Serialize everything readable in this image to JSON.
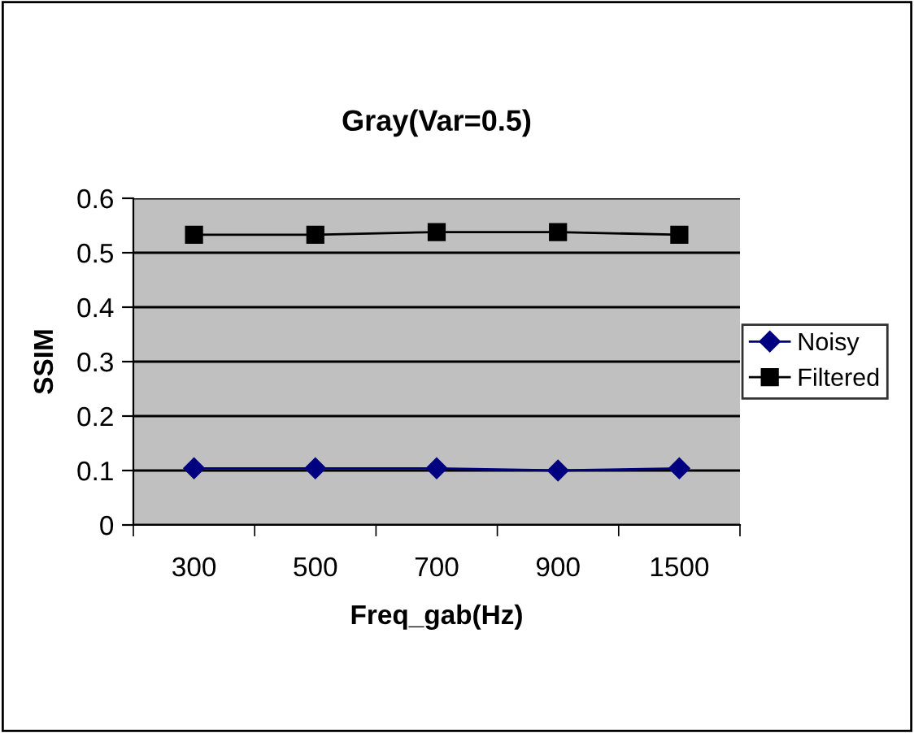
{
  "chart_data": {
    "type": "line",
    "title": "Gray(Var=0.5)",
    "xlabel": "Freq_gab(Hz)",
    "ylabel": "SSIM",
    "categories": [
      "300",
      "500",
      "700",
      "900",
      "1500"
    ],
    "series": [
      {
        "name": "Noisy",
        "color": "#000080",
        "values": [
          0.104,
          0.104,
          0.104,
          0.1,
          0.104
        ],
        "marker": "diamond"
      },
      {
        "name": "Filtered",
        "color": "#000000",
        "values": [
          0.533,
          0.533,
          0.538,
          0.538,
          0.533
        ],
        "marker": "square"
      }
    ],
    "ylim": [
      0,
      0.6
    ],
    "yticks": [
      {
        "value": 0,
        "label": "0"
      },
      0.1,
      0.2,
      0.3,
      0.4,
      0.5,
      0.6
    ],
    "grid": "y",
    "legend": "right"
  }
}
